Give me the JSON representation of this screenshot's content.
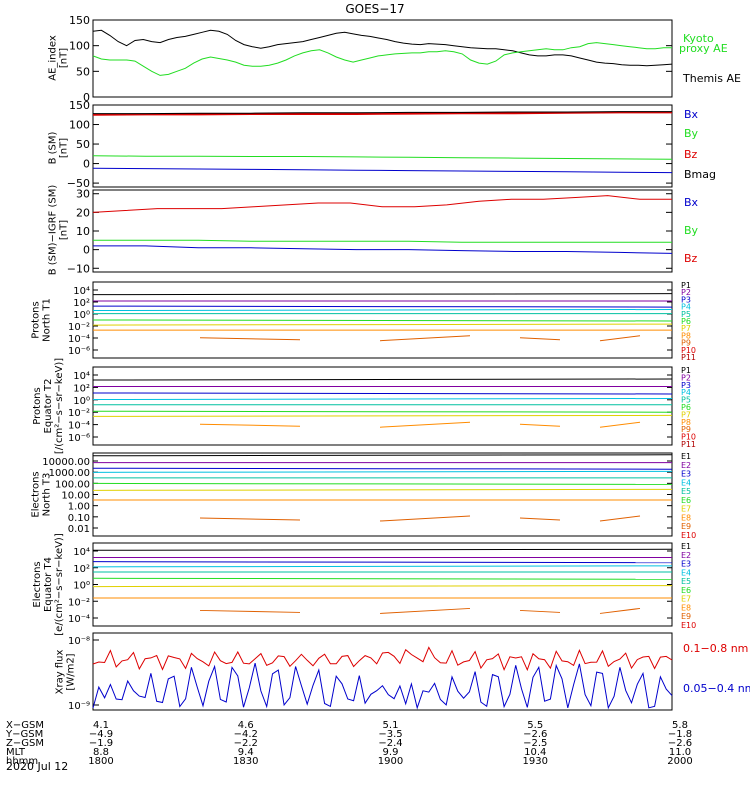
{
  "title": "GOES−17",
  "colors": {
    "black": "#000000",
    "green": "#22dd22",
    "red": "#dd0000",
    "blue": "#0000cc",
    "navy": "#000080",
    "purple": "#8000a0",
    "cyan": "#00c0e0",
    "teal": "#00c0a0",
    "yellow": "#e0d000",
    "orange": "#ff8c00",
    "darkorange": "#e06000",
    "crimson": "#b00000"
  },
  "chart_data": [
    {
      "type": "line",
      "ylabel": "AE_index\n[nT]",
      "ylim": [
        0,
        150
      ],
      "yticks": [
        "150",
        "100",
        "50",
        "0"
      ],
      "series": [
        {
          "name": "Themis AE",
          "color": "black",
          "values": [
            128,
            130,
            120,
            108,
            100,
            110,
            112,
            108,
            106,
            112,
            116,
            118,
            122,
            126,
            130,
            128,
            122,
            110,
            102,
            98,
            95,
            98,
            102,
            104,
            106,
            108,
            112,
            116,
            120,
            124,
            126,
            123,
            120,
            118,
            115,
            112,
            108,
            105,
            103,
            102,
            104,
            103,
            102,
            100,
            98,
            96,
            95,
            94,
            94,
            92,
            90,
            86,
            82,
            80,
            80,
            82,
            82,
            80,
            76,
            72,
            68,
            66,
            65,
            63,
            62,
            62,
            61,
            62,
            63,
            64
          ]
        },
        {
          "name": "Kyoto\nproxy AE",
          "color": "green",
          "values": [
            80,
            74,
            72,
            72,
            72,
            70,
            60,
            50,
            42,
            44,
            50,
            56,
            66,
            74,
            78,
            75,
            72,
            68,
            62,
            60,
            60,
            62,
            66,
            72,
            80,
            86,
            90,
            92,
            86,
            78,
            72,
            68,
            72,
            76,
            80,
            82,
            84,
            85,
            86,
            86,
            88,
            88,
            90,
            88,
            84,
            72,
            66,
            64,
            70,
            82,
            86,
            88,
            90,
            92,
            94,
            92,
            92,
            96,
            98,
            104,
            106,
            104,
            102,
            100,
            98,
            96,
            94,
            94,
            96,
            96
          ]
        }
      ]
    },
    {
      "type": "line",
      "ylabel": "B (SM)\n[nT]",
      "ylim": [
        -60,
        150
      ],
      "yticks": [
        "150",
        "100",
        "50",
        "0",
        "−50"
      ],
      "series": [
        {
          "name": "Bx",
          "color": "blue",
          "values": [
            -12,
            -13,
            -14,
            -15,
            -16,
            -17,
            -18,
            -19,
            -20,
            -21,
            -22,
            -23
          ]
        },
        {
          "name": "By",
          "color": "green",
          "values": [
            20,
            19,
            19,
            18,
            18,
            17,
            16,
            15,
            14,
            13,
            12,
            11
          ]
        },
        {
          "name": "Bz",
          "color": "red",
          "values": [
            125,
            126,
            126,
            127,
            127,
            127,
            128,
            129,
            129,
            130,
            131,
            131
          ]
        },
        {
          "name": "Bmag",
          "color": "black",
          "values": [
            128,
            128,
            129,
            129,
            130,
            130,
            131,
            131,
            132,
            132,
            133,
            133
          ]
        }
      ]
    },
    {
      "type": "line",
      "ylabel": "B (SM)−IGRF (SM)\n[nT]",
      "ylim": [
        -12,
        32
      ],
      "yticks": [
        "30",
        "20",
        "10",
        "0",
        "−10"
      ],
      "series": [
        {
          "name": "Bx",
          "color": "blue",
          "values": [
            2,
            2,
            1,
            1,
            0.5,
            0,
            0,
            -0.5,
            -1,
            -1,
            -1.5,
            -2
          ]
        },
        {
          "name": "By",
          "color": "green",
          "values": [
            5,
            5,
            5,
            4.5,
            4.5,
            4.5,
            4.5,
            4,
            4,
            4,
            4,
            4
          ]
        },
        {
          "name": "Bz",
          "color": "red",
          "values": [
            20,
            21,
            22,
            22,
            22,
            23,
            24,
            25,
            25,
            23,
            23,
            24,
            26,
            27,
            27,
            28,
            29,
            27,
            27
          ]
        }
      ]
    }
  ],
  "proton_panels": [
    {
      "ylabel": "Protons\nNorth T1",
      "yticks": [
        "10⁴",
        "10²",
        "10⁰",
        "10⁻²",
        "10⁻⁴",
        "10⁻⁶"
      ],
      "channels": [
        "P1",
        "P2",
        "P3",
        "P4",
        "P5",
        "P6",
        "P7",
        "P8",
        "P9",
        "P10",
        "P11"
      ],
      "levels": [
        3,
        2,
        1.2,
        0.5,
        0,
        -1,
        -1.8,
        -2.6,
        -3.8
      ]
    },
    {
      "ylabel": "Protons\nEquator T2\n[/(cm²−s−sr−keV)]",
      "yticks": [
        "10⁴",
        "10²",
        "10⁰",
        "10⁻²",
        "10⁻⁴",
        "10⁻⁶"
      ],
      "channels": [
        "P1",
        "P2",
        "P3",
        "P4",
        "P5",
        "P6",
        "P7",
        "P8",
        "P9",
        "P10",
        "P11"
      ],
      "levels": [
        3,
        2,
        1,
        0,
        -0.8,
        -1.8,
        -2.6,
        -3.8
      ]
    }
  ],
  "electron_panels": [
    {
      "ylabel": "Electrons\nNorth T3",
      "yticks": [
        "10000.00",
        "1000.00",
        "100.00",
        "10.00",
        "1.00",
        "0.10",
        "0.01"
      ],
      "channels": [
        "E1",
        "E2",
        "E3",
        "E4",
        "E5",
        "E6",
        "E7",
        "E8",
        "E9",
        "E10"
      ]
    },
    {
      "ylabel": "Electrons\nEquator T4\n[e/(cm²−s−sr−keV)]",
      "yticks": [
        "10⁴",
        "10²",
        "10⁰",
        "10⁻²",
        "10⁻⁴"
      ],
      "channels": [
        "E1",
        "E2",
        "E3",
        "E4",
        "E5",
        "E6",
        "E7",
        "E8",
        "E9",
        "E10"
      ]
    }
  ],
  "xray": {
    "ylabel": "Xray flux\n[W/m2]",
    "yticks": [
      "10⁻⁸",
      "10⁻⁹"
    ],
    "series": [
      {
        "name": "0.1−0.8 nm",
        "color": "red"
      },
      {
        "name": "0.05−0.4 nm",
        "color": "blue"
      }
    ]
  },
  "footer": {
    "rows": [
      {
        "label": "X−GSM",
        "values": [
          "4.1",
          "4.6",
          "5.1",
          "5.5",
          "5.8"
        ]
      },
      {
        "label": "Y−GSM",
        "values": [
          "−4.9",
          "−4.2",
          "−3.5",
          "−2.6",
          "−1.8"
        ]
      },
      {
        "label": "Z−GSM",
        "values": [
          "−1.9",
          "−2.2",
          "−2.4",
          "−2.5",
          "−2.6"
        ]
      },
      {
        "label": "MLT",
        "values": [
          "8.8",
          "9.4",
          "9.9",
          "10.4",
          "11.0"
        ]
      },
      {
        "label": "hhmm",
        "values": [
          "1800",
          "1830",
          "1900",
          "1930",
          "2000"
        ]
      }
    ],
    "date": "2020 Jul 12"
  }
}
